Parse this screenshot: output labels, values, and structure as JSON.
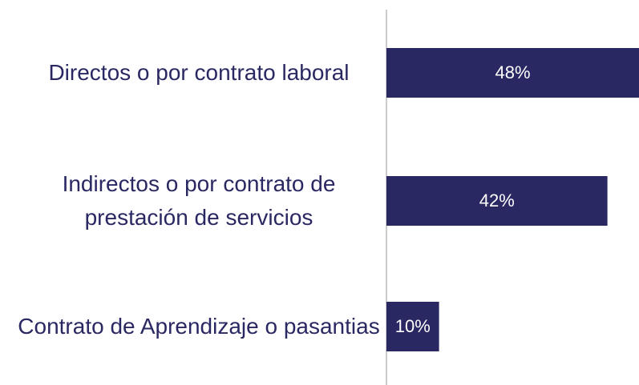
{
  "chart_data": {
    "type": "bar",
    "orientation": "horizontal",
    "categories": [
      "Directos o por contrato laboral",
      "Indirectos o por contrato de prestación de servicios",
      "Contrato de Aprendizaje o pasantias"
    ],
    "values": [
      48,
      42,
      10
    ],
    "value_labels": [
      "48%",
      "42%",
      "10%"
    ],
    "color": "#2a2862",
    "xlim": [
      0,
      48
    ]
  }
}
